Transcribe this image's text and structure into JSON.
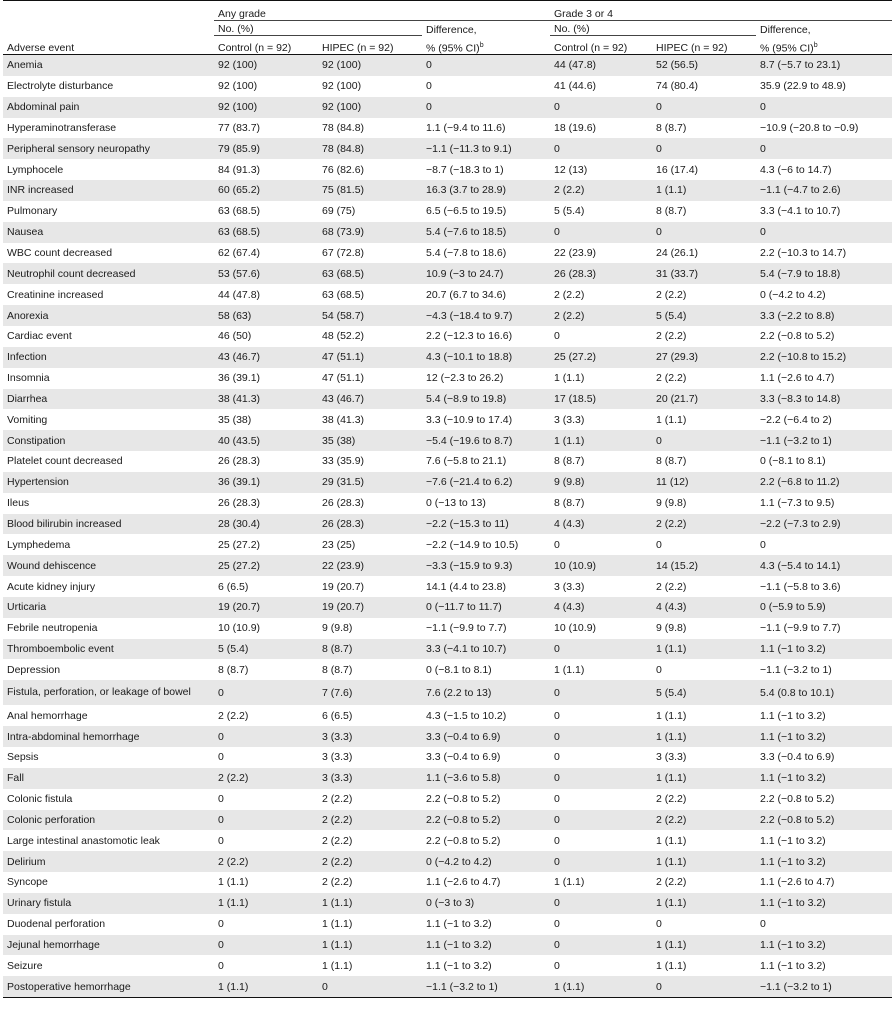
{
  "header": {
    "adverse_event": "Adverse event",
    "any_grade": "Any grade",
    "grade34": "Grade 3 or 4",
    "no_pct": "No. (%)",
    "control": "Control (n = 92)",
    "hipec": "HIPEC (n = 92)",
    "difference": "Difference,",
    "difference_ci": "% (95% CI)",
    "footnote_mark": "b"
  },
  "rows": [
    [
      "Anemia",
      "92 (100)",
      "92 (100)",
      "0",
      "44 (47.8)",
      "52 (56.5)",
      "8.7 (−5.7 to 23.1)"
    ],
    [
      "Electrolyte disturbance",
      "92 (100)",
      "92 (100)",
      "0",
      "41 (44.6)",
      "74 (80.4)",
      "35.9 (22.9 to 48.9)"
    ],
    [
      "Abdominal pain",
      "92 (100)",
      "92 (100)",
      "0",
      "0",
      "0",
      "0"
    ],
    [
      "Hyperaminotransferase",
      "77 (83.7)",
      "78 (84.8)",
      "1.1 (−9.4 to 11.6)",
      "18 (19.6)",
      "8 (8.7)",
      "−10.9 (−20.8 to −0.9)"
    ],
    [
      "Peripheral sensory neuropathy",
      "79 (85.9)",
      "78 (84.8)",
      "−1.1 (−11.3 to 9.1)",
      "0",
      "0",
      "0"
    ],
    [
      "Lymphocele",
      "84 (91.3)",
      "76 (82.6)",
      "−8.7 (−18.3 to 1)",
      "12 (13)",
      "16 (17.4)",
      "4.3 (−6 to 14.7)"
    ],
    [
      "INR increased",
      "60 (65.2)",
      "75 (81.5)",
      "16.3 (3.7 to 28.9)",
      "2 (2.2)",
      "1 (1.1)",
      "−1.1 (−4.7 to 2.6)"
    ],
    [
      "Pulmonary",
      "63 (68.5)",
      "69 (75)",
      "6.5 (−6.5 to 19.5)",
      "5 (5.4)",
      "8 (8.7)",
      "3.3 (−4.1 to 10.7)"
    ],
    [
      "Nausea",
      "63 (68.5)",
      "68 (73.9)",
      "5.4 (−7.6 to 18.5)",
      "0",
      "0",
      "0"
    ],
    [
      "WBC count decreased",
      "62 (67.4)",
      "67 (72.8)",
      "5.4 (−7.8 to 18.6)",
      "22 (23.9)",
      "24 (26.1)",
      "2.2 (−10.3 to 14.7)"
    ],
    [
      "Neutrophil count decreased",
      "53 (57.6)",
      "63 (68.5)",
      "10.9 (−3 to 24.7)",
      "26 (28.3)",
      "31 (33.7)",
      "5.4 (−7.9 to 18.8)"
    ],
    [
      "Creatinine increased",
      "44 (47.8)",
      "63 (68.5)",
      "20.7 (6.7 to 34.6)",
      "2 (2.2)",
      "2 (2.2)",
      "0 (−4.2 to 4.2)"
    ],
    [
      "Anorexia",
      "58 (63)",
      "54 (58.7)",
      "−4.3 (−18.4 to 9.7)",
      "2 (2.2)",
      "5 (5.4)",
      "3.3 (−2.2 to 8.8)"
    ],
    [
      "Cardiac event",
      "46 (50)",
      "48 (52.2)",
      "2.2 (−12.3 to 16.6)",
      "0",
      "2 (2.2)",
      "2.2 (−0.8 to 5.2)"
    ],
    [
      "Infection",
      "43 (46.7)",
      "47 (51.1)",
      "4.3 (−10.1 to 18.8)",
      "25 (27.2)",
      "27 (29.3)",
      "2.2 (−10.8 to 15.2)"
    ],
    [
      "Insomnia",
      "36 (39.1)",
      "47 (51.1)",
      "12 (−2.3 to 26.2)",
      "1 (1.1)",
      "2 (2.2)",
      "1.1 (−2.6 to 4.7)"
    ],
    [
      "Diarrhea",
      "38 (41.3)",
      "43 (46.7)",
      "5.4 (−8.9 to 19.8)",
      "17 (18.5)",
      "20 (21.7)",
      "3.3 (−8.3 to 14.8)"
    ],
    [
      "Vomiting",
      "35 (38)",
      "38 (41.3)",
      "3.3 (−10.9 to 17.4)",
      "3 (3.3)",
      "1 (1.1)",
      "−2.2 (−6.4 to 2)"
    ],
    [
      "Constipation",
      "40 (43.5)",
      "35 (38)",
      "−5.4 (−19.6 to 8.7)",
      "1 (1.1)",
      "0",
      "−1.1 (−3.2 to 1)"
    ],
    [
      "Platelet count decreased",
      "26 (28.3)",
      "33 (35.9)",
      "7.6 (−5.8 to 21.1)",
      "8 (8.7)",
      "8 (8.7)",
      "0 (−8.1 to 8.1)"
    ],
    [
      "Hypertension",
      "36 (39.1)",
      "29 (31.5)",
      "−7.6 (−21.4 to 6.2)",
      "9 (9.8)",
      "11 (12)",
      "2.2 (−6.8 to 11.2)"
    ],
    [
      "Ileus",
      "26 (28.3)",
      "26 (28.3)",
      "0 (−13 to 13)",
      "8 (8.7)",
      "9 (9.8)",
      "1.1 (−7.3 to 9.5)"
    ],
    [
      "Blood bilirubin increased",
      "28 (30.4)",
      "26 (28.3)",
      "−2.2 (−15.3 to 11)",
      "4 (4.3)",
      "2 (2.2)",
      "−2.2 (−7.3 to 2.9)"
    ],
    [
      "Lymphedema",
      "25 (27.2)",
      "23 (25)",
      "−2.2 (−14.9 to 10.5)",
      "0",
      "0",
      "0"
    ],
    [
      "Wound dehiscence",
      "25 (27.2)",
      "22 (23.9)",
      "−3.3 (−15.9 to 9.3)",
      "10 (10.9)",
      "14 (15.2)",
      "4.3 (−5.4 to 14.1)"
    ],
    [
      "Acute kidney injury",
      "6 (6.5)",
      "19 (20.7)",
      "14.1 (4.4 to 23.8)",
      "3 (3.3)",
      "2 (2.2)",
      "−1.1 (−5.8 to 3.6)"
    ],
    [
      "Urticaria",
      "19 (20.7)",
      "19 (20.7)",
      "0 (−11.7 to 11.7)",
      "4 (4.3)",
      "4 (4.3)",
      "0 (−5.9 to 5.9)"
    ],
    [
      "Febrile neutropenia",
      "10 (10.9)",
      "9 (9.8)",
      "−1.1 (−9.9 to 7.7)",
      "10 (10.9)",
      "9 (9.8)",
      "−1.1 (−9.9 to 7.7)"
    ],
    [
      "Thromboembolic event",
      "5 (5.4)",
      "8 (8.7)",
      "3.3 (−4.1 to 10.7)",
      "0",
      "1 (1.1)",
      "1.1 (−1 to 3.2)"
    ],
    [
      "Depression",
      "8 (8.7)",
      "8 (8.7)",
      "0 (−8.1 to 8.1)",
      "1 (1.1)",
      "0",
      "−1.1 (−3.2 to 1)"
    ],
    [
      "Fistula, perforation, or leakage of bowel",
      "0",
      "7 (7.6)",
      "7.6 (2.2 to 13)",
      "0",
      "5 (5.4)",
      "5.4 (0.8 to 10.1)"
    ],
    [
      "Anal hemorrhage",
      "2 (2.2)",
      "6 (6.5)",
      "4.3 (−1.5 to 10.2)",
      "0",
      "1 (1.1)",
      "1.1 (−1 to 3.2)"
    ],
    [
      "Intra-abdominal hemorrhage",
      "0",
      "3 (3.3)",
      "3.3 (−0.4 to 6.9)",
      "0",
      "1 (1.1)",
      "1.1 (−1 to 3.2)"
    ],
    [
      "Sepsis",
      "0",
      "3 (3.3)",
      "3.3 (−0.4 to 6.9)",
      "0",
      "3 (3.3)",
      "3.3 (−0.4 to 6.9)"
    ],
    [
      "Fall",
      "2 (2.2)",
      "3 (3.3)",
      "1.1 (−3.6 to 5.8)",
      "0",
      "1 (1.1)",
      "1.1 (−1 to 3.2)"
    ],
    [
      "Colonic fistula",
      "0",
      "2 (2.2)",
      "2.2 (−0.8 to 5.2)",
      "0",
      "2 (2.2)",
      "2.2 (−0.8 to 5.2)"
    ],
    [
      "Colonic perforation",
      "0",
      "2 (2.2)",
      "2.2 (−0.8 to 5.2)",
      "0",
      "2 (2.2)",
      "2.2 (−0.8 to 5.2)"
    ],
    [
      "Large intestinal anastomotic leak",
      "0",
      "2 (2.2)",
      "2.2 (−0.8 to 5.2)",
      "0",
      "1 (1.1)",
      "1.1 (−1 to 3.2)"
    ],
    [
      "Delirium",
      "2 (2.2)",
      "2 (2.2)",
      "0 (−4.2 to 4.2)",
      "0",
      "1 (1.1)",
      "1.1 (−1 to 3.2)"
    ],
    [
      "Syncope",
      "1 (1.1)",
      "2 (2.2)",
      "1.1 (−2.6 to 4.7)",
      "1 (1.1)",
      "2 (2.2)",
      "1.1 (−2.6 to 4.7)"
    ],
    [
      "Urinary fistula",
      "1 (1.1)",
      "1 (1.1)",
      "0 (−3 to 3)",
      "0",
      "1 (1.1)",
      "1.1 (−1 to 3.2)"
    ],
    [
      "Duodenal perforation",
      "0",
      "1 (1.1)",
      "1.1 (−1 to 3.2)",
      "0",
      "0",
      "0"
    ],
    [
      "Jejunal hemorrhage",
      "0",
      "1 (1.1)",
      "1.1 (−1 to 3.2)",
      "0",
      "1 (1.1)",
      "1.1 (−1 to 3.2)"
    ],
    [
      "Seizure",
      "0",
      "1 (1.1)",
      "1.1 (−1 to 3.2)",
      "0",
      "1 (1.1)",
      "1.1 (−1 to 3.2)"
    ],
    [
      "Postoperative hemorrhage",
      "1 (1.1)",
      "0",
      "−1.1 (−3.2 to 1)",
      "1 (1.1)",
      "0",
      "−1.1 (−3.2 to 1)"
    ]
  ]
}
